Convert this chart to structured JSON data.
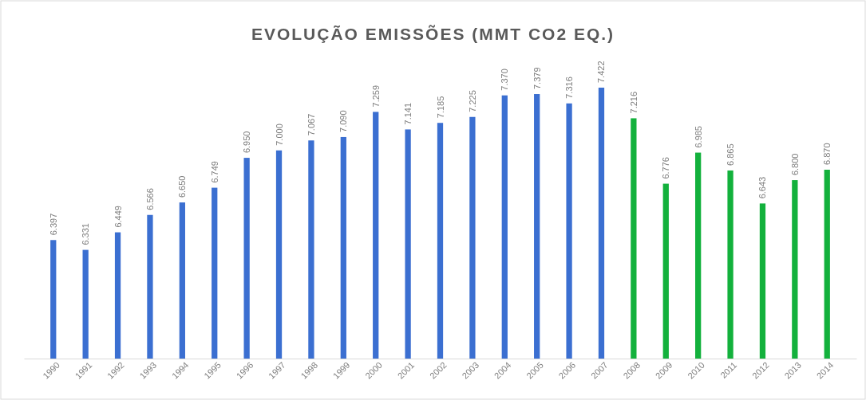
{
  "chart_data": {
    "type": "bar",
    "title": "EVOLUÇÃO EMISSÕES (MMT CO2 EQ.)",
    "categories": [
      "1990",
      "1991",
      "1992",
      "1993",
      "1994",
      "1995",
      "1996",
      "1997",
      "1998",
      "1999",
      "2000",
      "2001",
      "2002",
      "2003",
      "2004",
      "2005",
      "2006",
      "2007",
      "2008",
      "2009",
      "2010",
      "2011",
      "2012",
      "2013",
      "2014"
    ],
    "values": [
      6.397,
      6.331,
      6.449,
      6.566,
      6.65,
      6.749,
      6.95,
      7.0,
      7.067,
      7.09,
      7.259,
      7.141,
      7.185,
      7.225,
      7.37,
      7.379,
      7.316,
      7.422,
      7.216,
      6.776,
      6.985,
      6.865,
      6.643,
      6.8,
      6.87
    ],
    "colors": [
      "#3b6fd1",
      "#3b6fd1",
      "#3b6fd1",
      "#3b6fd1",
      "#3b6fd1",
      "#3b6fd1",
      "#3b6fd1",
      "#3b6fd1",
      "#3b6fd1",
      "#3b6fd1",
      "#3b6fd1",
      "#3b6fd1",
      "#3b6fd1",
      "#3b6fd1",
      "#3b6fd1",
      "#3b6fd1",
      "#3b6fd1",
      "#3b6fd1",
      "#13b13c",
      "#13b13c",
      "#13b13c",
      "#13b13c",
      "#13b13c",
      "#13b13c",
      "#13b13c"
    ],
    "value_labels": [
      "6.397",
      "6.331",
      "6.449",
      "6.566",
      "6.650",
      "6.749",
      "6.950",
      "7.000",
      "7.067",
      "7.090",
      "7.259",
      "7.141",
      "7.185",
      "7.225",
      "7.370",
      "7.379",
      "7.316",
      "7.422",
      "7.216",
      "6.776",
      "6.985",
      "6.865",
      "6.643",
      "6.800",
      "6.870"
    ],
    "ylim": [
      5.6,
      7.422
    ],
    "tick_labels": "x"
  }
}
